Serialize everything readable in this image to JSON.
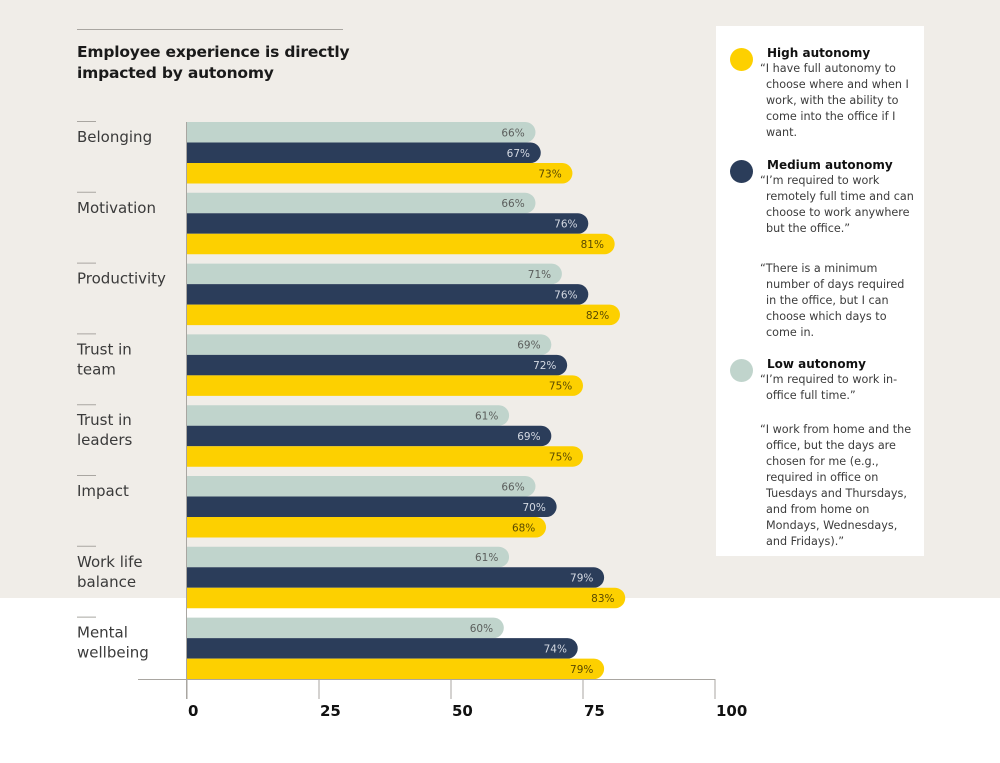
{
  "title": "Employee experience is directly impacted by autonomy",
  "colors": {
    "high": "#fdd000",
    "medium": "#2b3d5a",
    "low": "#c0d4cc",
    "background_top": "#f0ede8",
    "axis": "#a9a6a1"
  },
  "legend": [
    {
      "key": "high",
      "title": "High autonomy",
      "quotes": [
        "“I have full autonomy to choose where and when I work, with the ability to come into the office if I want."
      ]
    },
    {
      "key": "medium",
      "title": "Medium autonomy",
      "quotes": [
        "“I’m required to work remotely full time and can choose to work anywhere but the office.”",
        "“There is a minimum number of days required in the office, but I can choose which days to come in."
      ]
    },
    {
      "key": "low",
      "title": "Low autonomy",
      "quotes": [
        "“I’m required to work in-office full time.”",
        "“I work from home and the office, but the days are chosen for me (e.g., required in office on Tuesdays and Thursdays, and from home on Mondays, Wednesdays, and Fridays).”"
      ]
    }
  ],
  "chart_data": {
    "type": "bar",
    "orientation": "horizontal",
    "title": "Employee experience is directly impacted by autonomy",
    "xlabel": "",
    "ylabel": "",
    "xlim": [
      0,
      100
    ],
    "xticks": [
      0,
      25,
      50,
      75,
      100
    ],
    "grid": false,
    "legend_position": "right",
    "categories": [
      [
        "Belonging"
      ],
      [
        "Motivation"
      ],
      [
        "Productivity"
      ],
      [
        "Trust in",
        "team"
      ],
      [
        "Trust in",
        "leaders"
      ],
      [
        "Impact"
      ],
      [
        "Work life",
        "balance"
      ],
      [
        "Mental",
        "wellbeing"
      ]
    ],
    "series": [
      {
        "name": "Low autonomy",
        "key": "low",
        "values": [
          66,
          66,
          71,
          69,
          61,
          66,
          61,
          60
        ]
      },
      {
        "name": "Medium autonomy",
        "key": "medium",
        "values": [
          67,
          76,
          76,
          72,
          69,
          70,
          79,
          74
        ]
      },
      {
        "name": "High autonomy",
        "key": "high",
        "values": [
          73,
          81,
          82,
          75,
          75,
          68,
          83,
          79
        ]
      }
    ],
    "value_suffix": "%"
  }
}
